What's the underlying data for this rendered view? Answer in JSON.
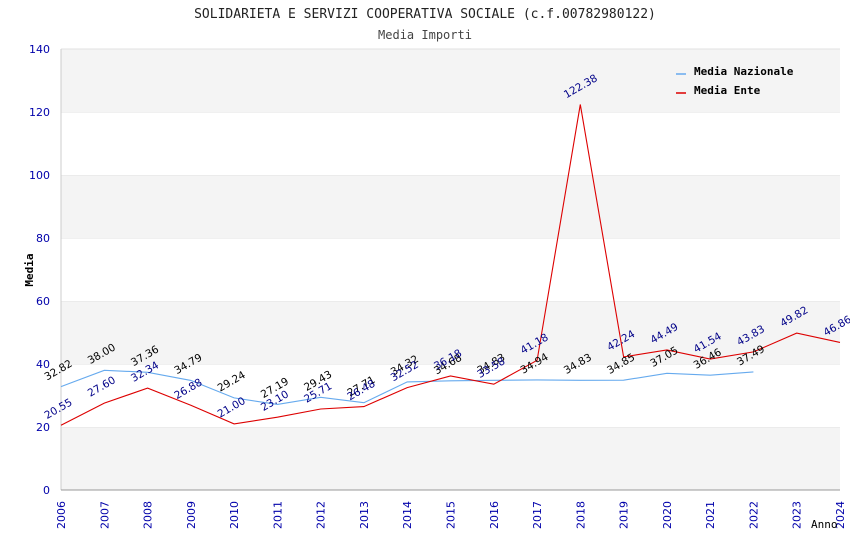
{
  "chart_data": {
    "type": "line",
    "title": "SOLIDARIETA E SERVIZI COOPERATIVA SOCIALE (c.f.00782980122)",
    "subtitle": "Media Importi",
    "xlabel": "Anno",
    "ylabel": "Media",
    "ylim": [
      0,
      140
    ],
    "yticks": [
      0,
      20,
      40,
      60,
      80,
      100,
      120,
      140
    ],
    "x": [
      2006,
      2007,
      2008,
      2009,
      2010,
      2011,
      2012,
      2013,
      2014,
      2015,
      2016,
      2017,
      2018,
      2019,
      2020,
      2021,
      2022,
      2023,
      2024
    ],
    "grid": "horizontal-bands",
    "legend_position": "top-right",
    "series": [
      {
        "name": "Media Nazionale",
        "color": "#66aaee",
        "label_color": "#000000",
        "values": [
          32.82,
          38.0,
          37.36,
          34.79,
          29.24,
          27.19,
          29.43,
          27.71,
          34.32,
          34.68,
          34.83,
          34.94,
          34.83,
          34.85,
          37.05,
          36.46,
          37.49,
          null,
          null
        ],
        "labels": [
          "32.82",
          "38.00",
          "37.36",
          "34.79",
          "29.24",
          "27.19",
          "29.43",
          "27.71",
          "34.32",
          "34.68",
          "34.83",
          "34.94",
          "34.83",
          "34.85",
          "37.05",
          "36.46",
          "37.49",
          null,
          null
        ]
      },
      {
        "name": "Media Ente",
        "color": "#dd0000",
        "label_color": "#000088",
        "values": [
          20.55,
          27.6,
          32.34,
          26.88,
          21.0,
          23.1,
          25.71,
          26.48,
          32.52,
          36.18,
          33.58,
          41.18,
          122.38,
          42.24,
          44.49,
          41.54,
          43.83,
          49.82,
          46.86
        ],
        "labels": [
          "20.55",
          "27.60",
          "32.34",
          "26.88",
          "21.00",
          "23.10",
          "25.71",
          "26.48",
          "32.52",
          "36.18",
          "33.58",
          "41.18",
          "122.38",
          "42.24",
          "44.49",
          "41.54",
          "43.83",
          "49.82",
          "46.86"
        ]
      }
    ]
  }
}
